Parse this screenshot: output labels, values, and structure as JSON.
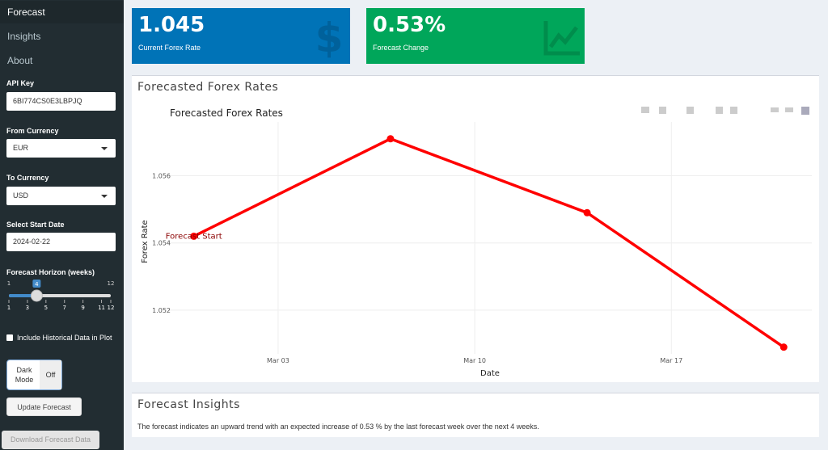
{
  "sidebar": {
    "menu": [
      "Forecast",
      "Insights",
      "About"
    ],
    "api_key": {
      "label": "API Key",
      "value": "6BI774CS0E3LBPJQ"
    },
    "from_currency": {
      "label": "From Currency",
      "value": "EUR"
    },
    "to_currency": {
      "label": "To Currency",
      "value": "USD"
    },
    "start_date": {
      "label": "Select Start Date",
      "value": "2024-02-22"
    },
    "horizon": {
      "label": "Forecast Horizon (weeks)",
      "min": 1,
      "max": 12,
      "value": 4,
      "ticks": [
        1,
        3,
        5,
        7,
        9,
        11,
        12
      ]
    },
    "historical": {
      "label": "Include Historical Data in Plot"
    },
    "dark_mode": {
      "label": "Dark Mode",
      "state": "Off"
    },
    "update_button": "Update Forecast",
    "download_button": "Download Forecast Data"
  },
  "value_boxes": [
    {
      "value": "1.045",
      "label": "Current Forex Rate",
      "color": "#0073b7"
    },
    {
      "value": "0.53%",
      "label": "Forecast Change",
      "color": "#00a65a"
    }
  ],
  "chart_box": {
    "title": "Forecasted Forex Rates"
  },
  "chart": {
    "type": "line",
    "title": "Forecasted Forex Rates",
    "x_label": "Date",
    "y_label": "Forex Rate",
    "x": [
      "Feb 29",
      "Mar 07",
      "Mar 14",
      "Mar 21"
    ],
    "values": [
      1.0542,
      1.0571,
      1.0549,
      1.0509
    ],
    "color": "#ff0000",
    "xlim": [
      "Feb 28",
      "Mar 22"
    ],
    "xticks": [
      "Mar 03",
      "Mar 10",
      "Mar 17"
    ],
    "ylim": [
      1.0507,
      1.0576
    ],
    "yticks": [
      1.052,
      1.054,
      1.056
    ],
    "annotation": "Forecast Start",
    "grid": true
  },
  "insights": {
    "title": "Forecast Insights",
    "text": "The forecast indicates an upward trend with an expected increase of 0.53 % by the last forecast week over the next 4 weeks."
  }
}
